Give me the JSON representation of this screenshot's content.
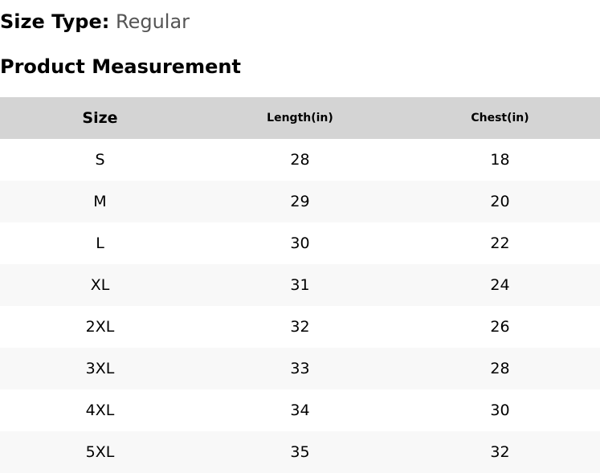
{
  "size_type": {
    "label": "Size Type:",
    "value": "Regular"
  },
  "section_title": "Product Measurement",
  "table": {
    "headers": [
      "Size",
      "Length(in)",
      "Chest(in)"
    ],
    "rows": [
      [
        "S",
        "28",
        "18"
      ],
      [
        "M",
        "29",
        "20"
      ],
      [
        "L",
        "30",
        "22"
      ],
      [
        "XL",
        "31",
        "24"
      ],
      [
        "2XL",
        "32",
        "26"
      ],
      [
        "3XL",
        "33",
        "28"
      ],
      [
        "4XL",
        "34",
        "30"
      ],
      [
        "5XL",
        "35",
        "32"
      ]
    ]
  },
  "colors": {
    "header_bg": "#d4d4d4",
    "alt_row_bg": "#f8f8f8",
    "value_text": "#555555"
  }
}
